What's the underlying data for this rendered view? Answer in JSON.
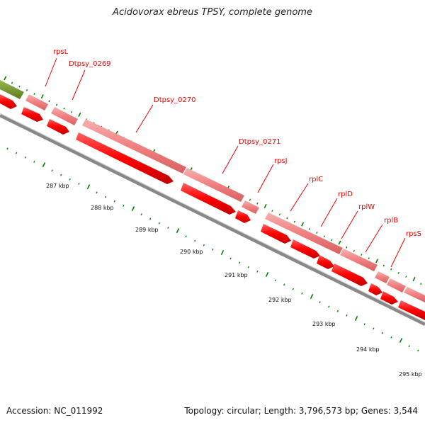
{
  "title": "Acidovorax ebreus TPSY, complete genome",
  "footer": {
    "accession": "Accession: NC_011992",
    "summary": "Topology: circular; Length: 3,796,573 bp; Genes: 3,544"
  },
  "colors": {
    "gene_light": "#f08080",
    "gene_dark": "#ff0000",
    "prev_feature": "#6b8e23",
    "backbone": "#888888",
    "tick": "#008000",
    "label": "#ee0000"
  },
  "gene_labels": [
    "rpsL",
    "Dtpsy_0269",
    "Dtpsy_0270",
    "Dtpsy_0271",
    "rpsJ",
    "rplC",
    "rplD",
    "rplW",
    "rplB",
    "rpsS"
  ],
  "scale_labels": [
    "287 kbp",
    "288 kbp",
    "289 kbp",
    "290 kbp",
    "291 kbp",
    "292 kbp",
    "293 kbp",
    "294 kbp",
    "295 kbp"
  ]
}
